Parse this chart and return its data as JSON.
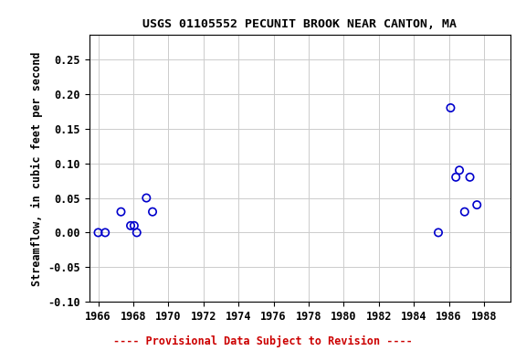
{
  "title": "USGS 01105552 PECUNIT BROOK NEAR CANTON, MA",
  "ylabel": "Streamflow, in cubic feet per second",
  "xlabel_note": "---- Provisional Data Subject to Revision ----",
  "xlim": [
    1965.5,
    1989.5
  ],
  "ylim": [
    -0.1,
    0.285
  ],
  "xticks": [
    1966,
    1968,
    1970,
    1972,
    1974,
    1976,
    1978,
    1980,
    1982,
    1984,
    1986,
    1988
  ],
  "yticks": [
    -0.1,
    -0.05,
    0.0,
    0.05,
    0.1,
    0.15,
    0.2,
    0.25
  ],
  "data_x": [
    1966.0,
    1966.4,
    1967.3,
    1967.85,
    1968.05,
    1968.2,
    1968.75,
    1969.1,
    1985.4,
    1986.1,
    1986.4,
    1986.6,
    1986.9,
    1987.2,
    1987.6
  ],
  "data_y": [
    0.0,
    0.0,
    0.03,
    0.01,
    0.01,
    0.0,
    0.05,
    0.03,
    0.0,
    0.18,
    0.08,
    0.09,
    0.03,
    0.08,
    0.04
  ],
  "marker_color": "#0000cc",
  "marker_facecolor": "none",
  "marker_size": 6,
  "marker_linewidth": 1.2,
  "title_fontsize": 9.5,
  "label_fontsize": 8.5,
  "tick_fontsize": 8.5,
  "note_color": "#cc0000",
  "note_fontsize": 8.5,
  "bg_color": "#ffffff",
  "plot_bg_color": "#ffffff",
  "grid_color": "#cccccc",
  "title_font": "monospace",
  "axis_font": "monospace"
}
